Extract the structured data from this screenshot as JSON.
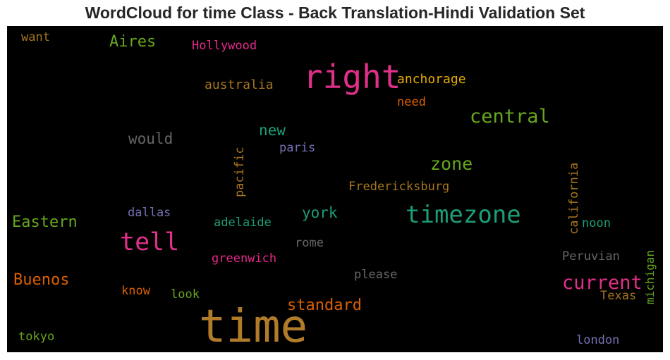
{
  "chart_data": {
    "type": "wordcloud",
    "title": "WordCloud for time Class - Back Translation-Hindi Validation Set",
    "background": "#000000",
    "words": [
      {
        "text": "time",
        "color": "#b07c2a"
      },
      {
        "text": "right",
        "color": "#e0308a"
      },
      {
        "text": "timezone",
        "color": "#1b9e77"
      },
      {
        "text": "tell",
        "color": "#e0308a"
      },
      {
        "text": "central",
        "color": "#66a61e"
      },
      {
        "text": "current",
        "color": "#e0308a"
      },
      {
        "text": "zone",
        "color": "#66a61e"
      },
      {
        "text": "standard",
        "color": "#d95f02"
      },
      {
        "text": "Eastern",
        "color": "#66a61e"
      },
      {
        "text": "Buenos",
        "color": "#d95f02"
      },
      {
        "text": "Aires",
        "color": "#66a61e"
      },
      {
        "text": "would",
        "color": "#666666"
      },
      {
        "text": "new",
        "color": "#1b9e77"
      },
      {
        "text": "york",
        "color": "#1b9e77"
      },
      {
        "text": "anchorage",
        "color": "#e6ab02"
      },
      {
        "text": "australia",
        "color": "#a6761d"
      },
      {
        "text": "Hollywood",
        "color": "#e7298a"
      },
      {
        "text": "need",
        "color": "#d95f02"
      },
      {
        "text": "paris",
        "color": "#7570b3"
      },
      {
        "text": "Fredericksburg",
        "color": "#a6761d"
      },
      {
        "text": "pacific",
        "color": "#a6761d"
      },
      {
        "text": "california",
        "color": "#a6761d"
      },
      {
        "text": "michigan",
        "color": "#66a61e"
      },
      {
        "text": "dallas",
        "color": "#7570b3"
      },
      {
        "text": "adelaide",
        "color": "#1b9e77"
      },
      {
        "text": "noon",
        "color": "#1b9e77"
      },
      {
        "text": "rome",
        "color": "#666666"
      },
      {
        "text": "greenwich",
        "color": "#e7298a"
      },
      {
        "text": "Peruvian",
        "color": "#666666"
      },
      {
        "text": "please",
        "color": "#666666"
      },
      {
        "text": "know",
        "color": "#d95f02"
      },
      {
        "text": "look",
        "color": "#66a61e"
      },
      {
        "text": "Texas",
        "color": "#a6761d"
      },
      {
        "text": "want",
        "color": "#a6761d"
      },
      {
        "text": "tokyo",
        "color": "#66a61e"
      },
      {
        "text": "london",
        "color": "#7570b3"
      }
    ]
  }
}
